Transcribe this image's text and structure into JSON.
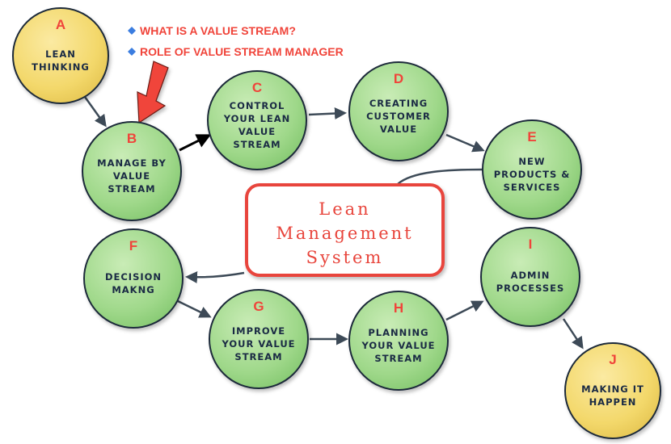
{
  "callouts": [
    "WHAT IS A VALUE STREAM?",
    "ROLE OF VALUE STREAM MANAGER"
  ],
  "center": {
    "lines": [
      "Lean",
      "Management",
      "System"
    ]
  },
  "nodes": [
    {
      "letter": "A",
      "lines": [
        "LEAN",
        "THINKING"
      ],
      "color": "#f3d86b"
    },
    {
      "letter": "B",
      "lines": [
        "MANAGE BY",
        "VALUE",
        "STREAM"
      ],
      "color": "#9fd88a"
    },
    {
      "letter": "C",
      "lines": [
        "CONTROL",
        "YOUR LEAN",
        "VALUE",
        "STREAM"
      ],
      "color": "#9fd88a"
    },
    {
      "letter": "D",
      "lines": [
        "CREATING",
        "CUSTOMER",
        "VALUE"
      ],
      "color": "#9fd88a"
    },
    {
      "letter": "E",
      "lines": [
        "NEW",
        "PRODUCTS &",
        "SERVICES"
      ],
      "color": "#9fd88a"
    },
    {
      "letter": "F",
      "lines": [
        "DECISION",
        "MAKNG"
      ],
      "color": "#9fd88a"
    },
    {
      "letter": "G",
      "lines": [
        "IMPROVE",
        "YOUR VALUE",
        "STREAM"
      ],
      "color": "#9fd88a"
    },
    {
      "letter": "H",
      "lines": [
        "PLANNING",
        "YOUR VALUE",
        "STREAM"
      ],
      "color": "#9fd88a"
    },
    {
      "letter": "I",
      "lines": [
        "ADMIN",
        "PROCESSES"
      ],
      "color": "#9fd88a"
    },
    {
      "letter": "J",
      "lines": [
        "MAKING IT",
        "HAPPEN"
      ],
      "color": "#f3d86b"
    }
  ],
  "colors": {
    "accent_red": "#f0443a",
    "node_outline": "#1f2b3a",
    "arrow": "#3d4a57",
    "bullet": "#3b7de0"
  }
}
